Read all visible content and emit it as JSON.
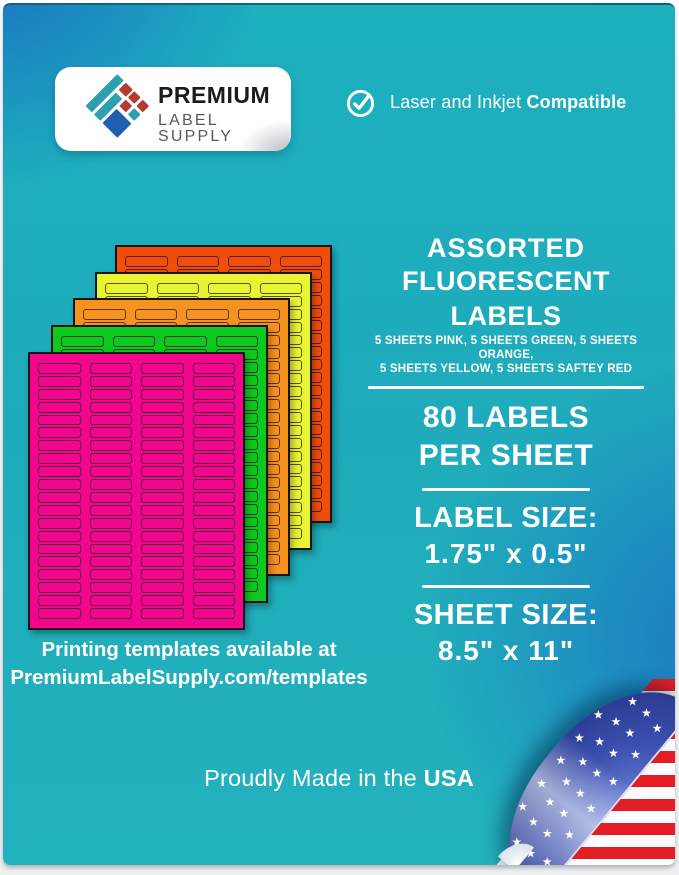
{
  "brand": {
    "name_line1": "PREMIUM",
    "name_line2": "LABEL SUPPLY",
    "logo_colors": {
      "teal": "#2e9fb0",
      "blue": "#1e5fae",
      "red": "#b23a31"
    }
  },
  "compatibility": {
    "icon": "checkmark-circle-icon",
    "text_regular": "Laser and Inkjet ",
    "text_bold": "Compatible"
  },
  "headline": {
    "line1": "ASSORTED",
    "line2": "FLUORESCENT LABELS",
    "subtitle_line1": "5 SHEETS PINK, 5 SHEETS GREEN, 5 SHEETS ORANGE,",
    "subtitle_line2": "5 SHEETS YELLOW, 5 SHEETS SAFTEY RED"
  },
  "specs": {
    "count_line1": "80 LABELS",
    "count_line2": "PER SHEET",
    "label_size_title": "LABEL SIZE:",
    "label_size_value": "1.75\" x 0.5\"",
    "sheet_size_title": "SHEET SIZE:",
    "sheet_size_value": "8.5\" x 11\""
  },
  "templates_note": {
    "line1": "Printing templates available at",
    "line2": "PremiumLabelSupply.com/templates"
  },
  "footer": {
    "made_in_regular": "Proudly Made in the ",
    "made_in_bold": "USA"
  },
  "sheets": {
    "columns": 4,
    "rows": 20,
    "colors": [
      {
        "name": "safety-red",
        "hex": "#f04e0d"
      },
      {
        "name": "yellow",
        "hex": "#eaf332"
      },
      {
        "name": "orange",
        "hex": "#f6921e"
      },
      {
        "name": "green",
        "hex": "#0fc81f"
      },
      {
        "name": "pink",
        "hex": "#f2068e"
      }
    ]
  },
  "background": {
    "blue": "#1a6dc2",
    "teal": "#1fb0bd"
  },
  "flag": {
    "stripe_red": "#e51e25",
    "stripe_white": "#fdfdfd",
    "field_blue_dark": "#1e2c7c",
    "field_blue_light": "#7b8fe0",
    "star_glyph": "★",
    "star_rows": [
      7,
      8,
      8,
      6
    ]
  }
}
